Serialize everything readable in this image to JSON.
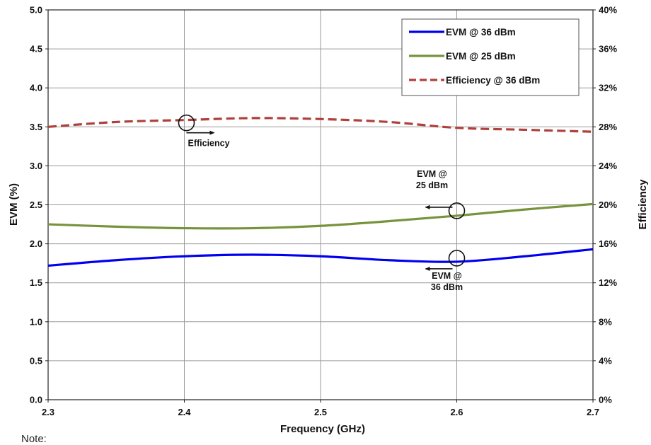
{
  "chart_data": {
    "type": "line",
    "title": "",
    "xlabel": "Frequency (GHz)",
    "ylabel": "EVM (%)",
    "y2label": "Efficiency",
    "xlim": [
      2.3,
      2.7
    ],
    "ylim": [
      0,
      5.0
    ],
    "y2lim": [
      0,
      40
    ],
    "xticks": [
      "2.3",
      "2.4",
      "2.5",
      "2.6",
      "2.7"
    ],
    "yticks": [
      "0.0",
      "0.5",
      "1.0",
      "1.5",
      "2.0",
      "2.5",
      "3.0",
      "3.5",
      "4.0",
      "4.5",
      "5.0"
    ],
    "y2ticks": [
      "0%",
      "4%",
      "8%",
      "12%",
      "16%",
      "20%",
      "24%",
      "28%",
      "32%",
      "36%",
      "40%"
    ],
    "grid": true,
    "legend_position": "top-right",
    "x": [
      2.3,
      2.35,
      2.4,
      2.45,
      2.5,
      2.55,
      2.6,
      2.65,
      2.7
    ],
    "series": [
      {
        "name": "EVM @ 36 dBm",
        "axis": "left",
        "color": "#0000ee",
        "style": "solid",
        "values": [
          1.72,
          1.79,
          1.84,
          1.86,
          1.84,
          1.79,
          1.77,
          1.84,
          1.93
        ]
      },
      {
        "name": "EVM @ 25 dBm",
        "axis": "left",
        "color": "#77933c",
        "style": "solid",
        "values": [
          2.25,
          2.22,
          2.2,
          2.2,
          2.23,
          2.29,
          2.36,
          2.44,
          2.51
        ]
      },
      {
        "name": "Efficiency @ 36 dBm",
        "axis": "right",
        "color": "#b0403c",
        "style": "dashed",
        "values": [
          28.0,
          28.5,
          28.7,
          28.9,
          28.8,
          28.5,
          27.9,
          27.7,
          27.5
        ]
      }
    ],
    "annotations": [
      {
        "text": "Efficiency"
      },
      {
        "text": "EVM @\n25 dBm"
      },
      {
        "text": "EVM @\n36 dBm"
      }
    ]
  },
  "note": "Note:"
}
